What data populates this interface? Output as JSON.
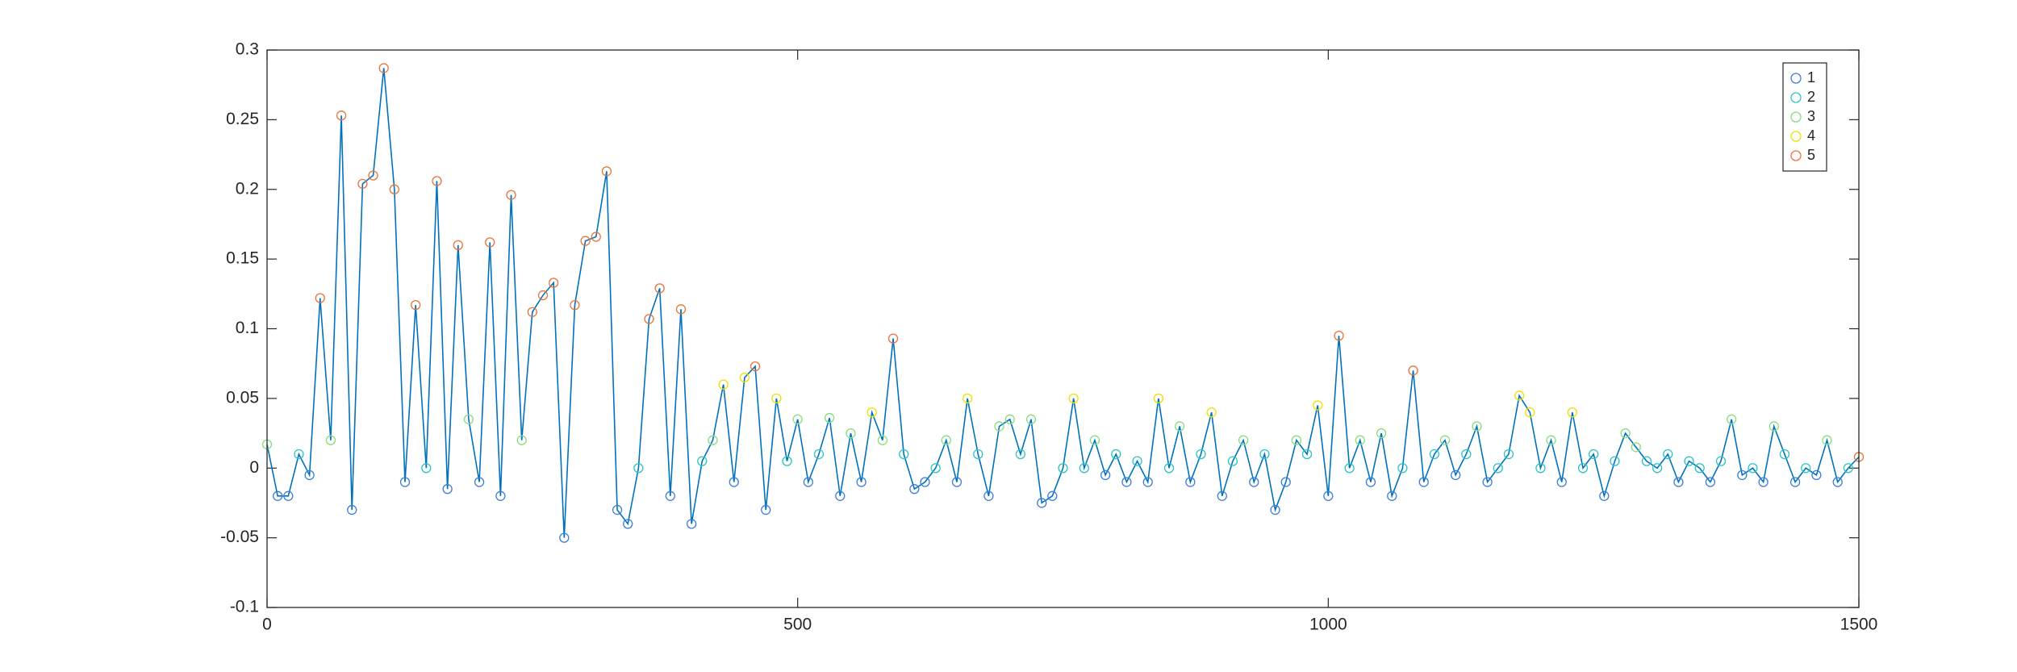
{
  "chart_data": {
    "type": "line",
    "x": [
      0,
      10,
      20,
      30,
      40,
      50,
      60,
      70,
      80,
      90,
      100,
      110,
      120,
      130,
      140,
      150,
      160,
      170,
      180,
      190,
      200,
      210,
      220,
      230,
      240,
      250,
      260,
      270,
      280,
      290,
      300,
      310,
      320,
      330,
      340,
      350,
      360,
      370,
      380,
      390,
      400,
      410,
      420,
      430,
      440,
      450,
      460,
      470,
      480,
      490,
      500,
      510,
      520,
      530,
      540,
      550,
      560,
      570,
      580,
      590,
      600,
      610,
      620,
      630,
      640,
      650,
      660,
      670,
      680,
      690,
      700,
      710,
      720,
      730,
      740,
      750,
      760,
      770,
      780,
      790,
      800,
      810,
      820,
      830,
      840,
      850,
      860,
      870,
      880,
      890,
      900,
      910,
      920,
      930,
      940,
      950,
      960,
      970,
      980,
      990,
      1000,
      1010,
      1020,
      1030,
      1040,
      1050,
      1060,
      1070,
      1080,
      1090,
      1100,
      1110,
      1120,
      1130,
      1140,
      1150,
      1160,
      1170,
      1180,
      1190,
      1200,
      1210,
      1220,
      1230,
      1240,
      1250,
      1260,
      1270,
      1280,
      1290,
      1300,
      1310,
      1320,
      1330,
      1340,
      1350,
      1360,
      1370,
      1380,
      1390,
      1400,
      1410,
      1420,
      1430,
      1440,
      1450,
      1460,
      1470,
      1480,
      1490,
      1500
    ],
    "values": [
      0.017,
      -0.02,
      -0.02,
      0.01,
      -0.005,
      0.122,
      0.02,
      0.253,
      -0.03,
      0.204,
      0.21,
      0.287,
      0.2,
      -0.01,
      0.117,
      0.0,
      0.206,
      -0.015,
      0.16,
      0.035,
      -0.01,
      0.162,
      -0.02,
      0.196,
      0.02,
      0.112,
      0.124,
      0.133,
      -0.05,
      0.117,
      0.163,
      0.166,
      0.213,
      -0.03,
      -0.04,
      0.0,
      0.107,
      0.129,
      -0.02,
      0.114,
      -0.04,
      0.005,
      0.02,
      0.06,
      -0.01,
      0.065,
      0.073,
      -0.03,
      0.05,
      0.005,
      0.035,
      -0.01,
      0.01,
      0.036,
      -0.02,
      0.025,
      -0.01,
      0.04,
      0.02,
      0.093,
      0.01,
      -0.015,
      -0.01,
      0.0,
      0.02,
      -0.01,
      0.05,
      0.01,
      -0.02,
      0.03,
      0.035,
      0.01,
      0.035,
      -0.025,
      -0.02,
      0.0,
      0.05,
      0.0,
      0.02,
      -0.005,
      0.01,
      -0.01,
      0.005,
      -0.01,
      0.05,
      0.0,
      0.03,
      -0.01,
      0.01,
      0.04,
      -0.02,
      0.005,
      0.02,
      -0.01,
      0.01,
      -0.03,
      -0.01,
      0.02,
      0.01,
      0.045,
      -0.02,
      0.095,
      0.0,
      0.02,
      -0.01,
      0.025,
      -0.02,
      0.0,
      0.07,
      -0.01,
      0.01,
      0.02,
      -0.005,
      0.01,
      0.03,
      -0.01,
      0.0,
      0.01,
      0.052,
      0.04,
      0.0,
      0.02,
      -0.01,
      0.04,
      0.0,
      0.01,
      -0.02,
      0.005,
      0.025,
      0.015,
      0.005,
      0.0,
      0.01,
      -0.01,
      0.005,
      0.0,
      -0.01,
      0.005,
      0.035,
      -0.005,
      0.0,
      -0.01,
      0.03,
      0.01,
      -0.01,
      0.0,
      -0.005,
      0.02,
      -0.01,
      0.0,
      0.008
    ],
    "classes": [
      3,
      1,
      1,
      2,
      1,
      5,
      3,
      5,
      1,
      5,
      5,
      5,
      5,
      1,
      5,
      2,
      5,
      1,
      5,
      3,
      1,
      5,
      1,
      5,
      3,
      5,
      5,
      5,
      1,
      5,
      5,
      5,
      5,
      1,
      1,
      2,
      5,
      5,
      1,
      5,
      1,
      2,
      3,
      4,
      1,
      4,
      5,
      1,
      4,
      2,
      3,
      1,
      2,
      3,
      1,
      3,
      1,
      4,
      3,
      5,
      2,
      1,
      1,
      2,
      3,
      1,
      4,
      2,
      1,
      3,
      3,
      2,
      3,
      1,
      1,
      2,
      4,
      2,
      3,
      1,
      2,
      1,
      2,
      1,
      4,
      2,
      3,
      1,
      2,
      4,
      1,
      2,
      3,
      1,
      2,
      1,
      1,
      3,
      2,
      4,
      1,
      5,
      2,
      3,
      1,
      3,
      1,
      2,
      5,
      1,
      2,
      3,
      1,
      2,
      3,
      1,
      2,
      2,
      4,
      4,
      2,
      3,
      1,
      4,
      2,
      2,
      1,
      2,
      3,
      3,
      2,
      2,
      2,
      1,
      2,
      2,
      1,
      2,
      3,
      1,
      2,
      1,
      3,
      2,
      1,
      2,
      1,
      3,
      1,
      2,
      5
    ],
    "color": "#0072bd",
    "legend": [
      {
        "name": "1",
        "color": "#3b7ed6"
      },
      {
        "name": "2",
        "color": "#2cc4c4"
      },
      {
        "name": "3",
        "color": "#84de7e"
      },
      {
        "name": "4",
        "color": "#ece000"
      },
      {
        "name": "5",
        "color": "#e8733a"
      }
    ],
    "legend_position": "upper right",
    "xlim": [
      0,
      1500
    ],
    "xticks": [
      0,
      500,
      1000,
      1500
    ],
    "ylim": [
      -0.1,
      0.3
    ],
    "yticks": [
      -0.1,
      -0.05,
      0,
      0.05,
      0.1,
      0.15,
      0.2,
      0.25,
      0.3
    ]
  }
}
